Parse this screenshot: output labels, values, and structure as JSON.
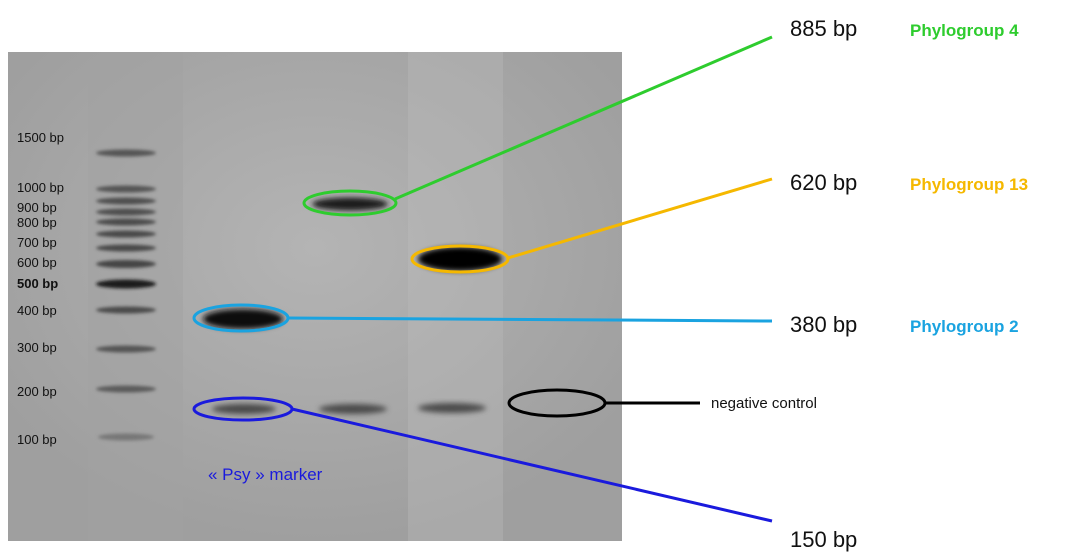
{
  "ladder": {
    "labels": [
      "1500 bp",
      "1000 bp",
      "900 bp",
      "800 bp",
      "700 bp",
      "600 bp",
      "500 bp",
      "400 bp",
      "300 bp",
      "200 bp",
      "100 bp"
    ]
  },
  "annotations": {
    "pg4_size": "885 bp",
    "pg4_name": "Phylogroup 4",
    "pg13_size": "620 bp",
    "pg13_name": "Phylogroup 13",
    "pg2_size": "380 bp",
    "pg2_name": "Phylogroup 2",
    "psy_size": "150 bp",
    "negative": "negative control",
    "psy_marker": "« Psy » marker"
  },
  "colors": {
    "pg4": "#2ecc2e",
    "pg13": "#f5b800",
    "pg2": "#1aa3e0",
    "psy": "#1a1add",
    "negative": "#000000"
  }
}
